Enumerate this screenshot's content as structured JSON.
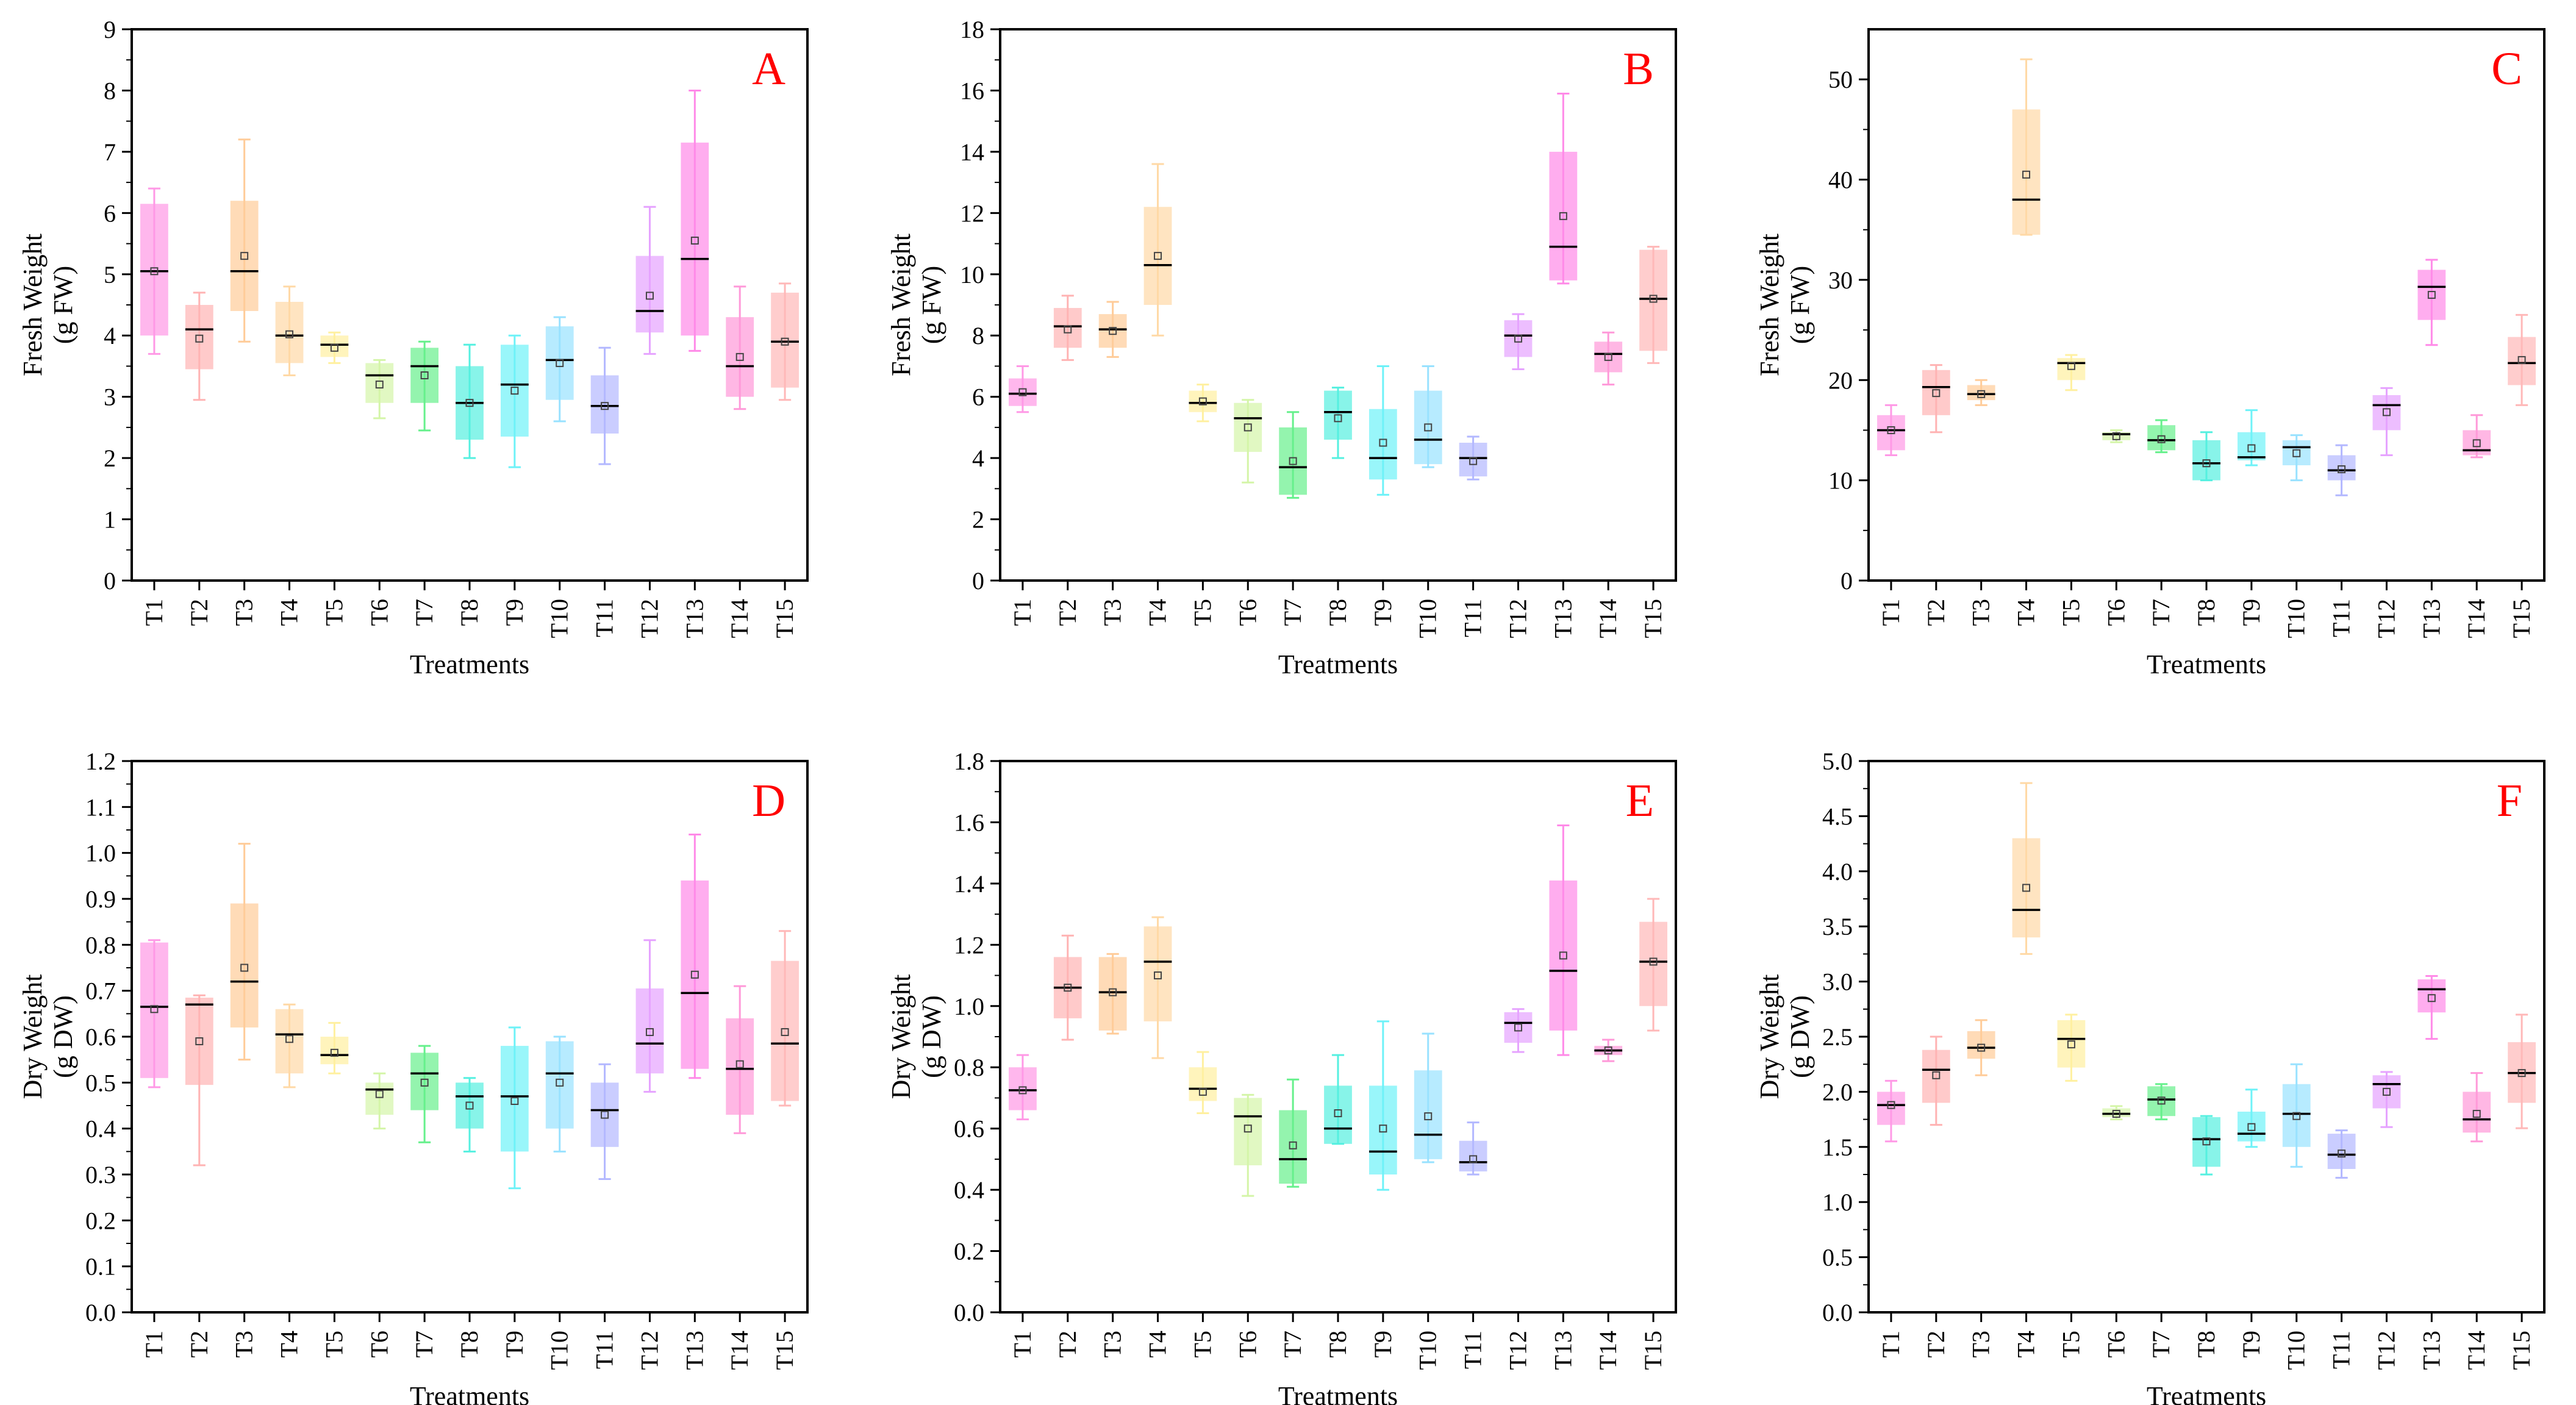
{
  "figure": {
    "treatments": [
      "T1",
      "T2",
      "T3",
      "T4",
      "T5",
      "T6",
      "T7",
      "T8",
      "T9",
      "T10",
      "T11",
      "T12",
      "T13",
      "T14",
      "T15"
    ],
    "colors": [
      "#ff99e6",
      "#ffb3b3",
      "#ffcc99",
      "#ffd9a6",
      "#fff0a0",
      "#d4f5a8",
      "#66f08c",
      "#55f0e0",
      "#6ef2f8",
      "#99e2ff",
      "#b3b8ff",
      "#e6a3ff",
      "#ff8ae8",
      "#ff99d9",
      "#ffb8b8"
    ]
  },
  "chart_data": [
    {
      "type": "box",
      "panel_label": "A",
      "xlabel": "Treatments",
      "ylabel": [
        "Fresh Weight",
        "(g FW)"
      ],
      "ylim": [
        0,
        9
      ],
      "yticks": [
        "0",
        "1",
        "2",
        "3",
        "4",
        "5",
        "6",
        "7",
        "8",
        "9"
      ],
      "categories": [
        "T1",
        "T2",
        "T3",
        "T4",
        "T5",
        "T6",
        "T7",
        "T8",
        "T9",
        "T10",
        "T11",
        "T12",
        "T13",
        "T14",
        "T15"
      ],
      "boxes": [
        {
          "min": 3.7,
          "q1": 4.0,
          "median": 5.05,
          "q3": 6.15,
          "max": 6.4,
          "mean": 5.05
        },
        {
          "min": 2.95,
          "q1": 3.45,
          "median": 4.1,
          "q3": 4.5,
          "max": 4.7,
          "mean": 3.95
        },
        {
          "min": 3.9,
          "q1": 4.4,
          "median": 5.05,
          "q3": 6.2,
          "max": 7.2,
          "mean": 5.3
        },
        {
          "min": 3.35,
          "q1": 3.55,
          "median": 4.0,
          "q3": 4.55,
          "max": 4.8,
          "mean": 4.02
        },
        {
          "min": 3.55,
          "q1": 3.65,
          "median": 3.85,
          "q3": 4.0,
          "max": 4.05,
          "mean": 3.8
        },
        {
          "min": 2.65,
          "q1": 2.9,
          "median": 3.35,
          "q3": 3.55,
          "max": 3.6,
          "mean": 3.2
        },
        {
          "min": 2.45,
          "q1": 2.9,
          "median": 3.5,
          "q3": 3.8,
          "max": 3.9,
          "mean": 3.35
        },
        {
          "min": 2.0,
          "q1": 2.3,
          "median": 2.9,
          "q3": 3.5,
          "max": 3.85,
          "mean": 2.9
        },
        {
          "min": 1.85,
          "q1": 2.35,
          "median": 3.2,
          "q3": 3.85,
          "max": 4.0,
          "mean": 3.1
        },
        {
          "min": 2.6,
          "q1": 2.95,
          "median": 3.6,
          "q3": 4.15,
          "max": 4.3,
          "mean": 3.55
        },
        {
          "min": 1.9,
          "q1": 2.4,
          "median": 2.85,
          "q3": 3.35,
          "max": 3.8,
          "mean": 2.85
        },
        {
          "min": 3.7,
          "q1": 4.05,
          "median": 4.4,
          "q3": 5.3,
          "max": 6.1,
          "mean": 4.65
        },
        {
          "min": 3.75,
          "q1": 4.0,
          "median": 5.25,
          "q3": 7.15,
          "max": 8.0,
          "mean": 5.55
        },
        {
          "min": 2.8,
          "q1": 3.0,
          "median": 3.5,
          "q3": 4.3,
          "max": 4.8,
          "mean": 3.65
        },
        {
          "min": 2.95,
          "q1": 3.15,
          "median": 3.9,
          "q3": 4.7,
          "max": 4.85,
          "mean": 3.9
        }
      ]
    },
    {
      "type": "box",
      "panel_label": "B",
      "xlabel": "Treatments",
      "ylabel": [
        "Fresh Weight",
        "(g FW)"
      ],
      "ylim": [
        0,
        18
      ],
      "yticks": [
        "0",
        "2",
        "4",
        "6",
        "8",
        "10",
        "12",
        "14",
        "16",
        "18"
      ],
      "categories": [
        "T1",
        "T2",
        "T3",
        "T4",
        "T5",
        "T6",
        "T7",
        "T8",
        "T9",
        "T10",
        "T11",
        "T12",
        "T13",
        "T14",
        "T15"
      ],
      "boxes": [
        {
          "min": 5.5,
          "q1": 5.7,
          "median": 6.1,
          "q3": 6.6,
          "max": 7.0,
          "mean": 6.15
        },
        {
          "min": 7.2,
          "q1": 7.6,
          "median": 8.3,
          "q3": 8.9,
          "max": 9.3,
          "mean": 8.2
        },
        {
          "min": 7.3,
          "q1": 7.6,
          "median": 8.2,
          "q3": 8.7,
          "max": 9.1,
          "mean": 8.15
        },
        {
          "min": 8.0,
          "q1": 9.0,
          "median": 10.3,
          "q3": 12.2,
          "max": 13.6,
          "mean": 10.6
        },
        {
          "min": 5.2,
          "q1": 5.5,
          "median": 5.8,
          "q3": 6.2,
          "max": 6.4,
          "mean": 5.85
        },
        {
          "min": 3.2,
          "q1": 4.2,
          "median": 5.3,
          "q3": 5.8,
          "max": 5.9,
          "mean": 5.0
        },
        {
          "min": 2.7,
          "q1": 2.8,
          "median": 3.7,
          "q3": 5.0,
          "max": 5.5,
          "mean": 3.9
        },
        {
          "min": 4.0,
          "q1": 4.6,
          "median": 5.5,
          "q3": 6.2,
          "max": 6.3,
          "mean": 5.3
        },
        {
          "min": 2.8,
          "q1": 3.3,
          "median": 4.0,
          "q3": 5.6,
          "max": 7.0,
          "mean": 4.5
        },
        {
          "min": 3.7,
          "q1": 3.8,
          "median": 4.6,
          "q3": 6.2,
          "max": 7.0,
          "mean": 5.0
        },
        {
          "min": 3.3,
          "q1": 3.4,
          "median": 4.0,
          "q3": 4.5,
          "max": 4.7,
          "mean": 3.9
        },
        {
          "min": 6.9,
          "q1": 7.3,
          "median": 8.0,
          "q3": 8.5,
          "max": 8.7,
          "mean": 7.9
        },
        {
          "min": 9.7,
          "q1": 9.8,
          "median": 10.9,
          "q3": 14.0,
          "max": 15.9,
          "mean": 11.9
        },
        {
          "min": 6.4,
          "q1": 6.8,
          "median": 7.4,
          "q3": 7.8,
          "max": 8.1,
          "mean": 7.3
        },
        {
          "min": 7.1,
          "q1": 7.5,
          "median": 9.2,
          "q3": 10.8,
          "max": 10.9,
          "mean": 9.2
        }
      ]
    },
    {
      "type": "box",
      "panel_label": "C",
      "xlabel": "Treatments",
      "ylabel": [
        "Fresh Weight",
        "(g FW)"
      ],
      "ylim": [
        0,
        55
      ],
      "yticks": [
        "0",
        "10",
        "20",
        "30",
        "40",
        "50"
      ],
      "ytick_values": [
        0,
        10,
        20,
        30,
        40,
        50
      ],
      "categories": [
        "T1",
        "T2",
        "T3",
        "T4",
        "T5",
        "T6",
        "T7",
        "T8",
        "T9",
        "T10",
        "T11",
        "T12",
        "T13",
        "T14",
        "T15"
      ],
      "boxes": [
        {
          "min": 12.5,
          "q1": 13.0,
          "median": 15.0,
          "q3": 16.5,
          "max": 17.5,
          "mean": 15.0
        },
        {
          "min": 14.8,
          "q1": 16.5,
          "median": 19.3,
          "q3": 21.0,
          "max": 21.5,
          "mean": 18.7
        },
        {
          "min": 17.5,
          "q1": 18.0,
          "median": 18.6,
          "q3": 19.5,
          "max": 20.0,
          "mean": 18.6
        },
        {
          "min": 34.5,
          "q1": 34.5,
          "median": 38.0,
          "q3": 47.0,
          "max": 52.0,
          "mean": 40.5
        },
        {
          "min": 19.0,
          "q1": 20.0,
          "median": 21.7,
          "q3": 22.2,
          "max": 22.5,
          "mean": 21.4
        },
        {
          "min": 13.8,
          "q1": 14.0,
          "median": 14.6,
          "q3": 14.8,
          "max": 15.0,
          "mean": 14.4
        },
        {
          "min": 12.8,
          "q1": 13.0,
          "median": 14.0,
          "q3": 15.5,
          "max": 16.0,
          "mean": 14.1
        },
        {
          "min": 10.0,
          "q1": 10.0,
          "median": 11.7,
          "q3": 14.0,
          "max": 14.8,
          "mean": 11.7
        },
        {
          "min": 11.5,
          "q1": 12.0,
          "median": 12.3,
          "q3": 14.8,
          "max": 17.0,
          "mean": 13.2
        },
        {
          "min": 10.0,
          "q1": 11.5,
          "median": 13.3,
          "q3": 14.0,
          "max": 14.5,
          "mean": 12.7
        },
        {
          "min": 8.5,
          "q1": 10.0,
          "median": 11.0,
          "q3": 12.5,
          "max": 13.5,
          "mean": 11.1
        },
        {
          "min": 12.5,
          "q1": 15.0,
          "median": 17.5,
          "q3": 18.5,
          "max": 19.2,
          "mean": 16.8
        },
        {
          "min": 23.5,
          "q1": 26.0,
          "median": 29.3,
          "q3": 31.0,
          "max": 32.0,
          "mean": 28.5
        },
        {
          "min": 12.3,
          "q1": 12.5,
          "median": 13.0,
          "q3": 15.0,
          "max": 16.5,
          "mean": 13.7
        },
        {
          "min": 17.5,
          "q1": 19.5,
          "median": 21.7,
          "q3": 24.3,
          "max": 26.5,
          "mean": 22.0
        }
      ]
    },
    {
      "type": "box",
      "panel_label": "D",
      "xlabel": "Treatments",
      "ylabel": [
        "Dry Weight",
        "(g DW)"
      ],
      "ylim": [
        0,
        1.2
      ],
      "yticks": [
        "0.0",
        "0.1",
        "0.2",
        "0.3",
        "0.4",
        "0.5",
        "0.6",
        "0.7",
        "0.8",
        "0.9",
        "1.0",
        "1.1",
        "1.2"
      ],
      "categories": [
        "T1",
        "T2",
        "T3",
        "T4",
        "T5",
        "T6",
        "T7",
        "T8",
        "T9",
        "T10",
        "T11",
        "T12",
        "T13",
        "T14",
        "T15"
      ],
      "boxes": [
        {
          "min": 0.49,
          "q1": 0.51,
          "median": 0.665,
          "q3": 0.805,
          "max": 0.81,
          "mean": 0.66
        },
        {
          "min": 0.32,
          "q1": 0.495,
          "median": 0.67,
          "q3": 0.685,
          "max": 0.69,
          "mean": 0.59
        },
        {
          "min": 0.55,
          "q1": 0.62,
          "median": 0.72,
          "q3": 0.89,
          "max": 1.02,
          "mean": 0.75
        },
        {
          "min": 0.49,
          "q1": 0.52,
          "median": 0.605,
          "q3": 0.66,
          "max": 0.67,
          "mean": 0.595
        },
        {
          "min": 0.52,
          "q1": 0.54,
          "median": 0.56,
          "q3": 0.6,
          "max": 0.63,
          "mean": 0.565
        },
        {
          "min": 0.4,
          "q1": 0.43,
          "median": 0.485,
          "q3": 0.5,
          "max": 0.52,
          "mean": 0.475
        },
        {
          "min": 0.37,
          "q1": 0.44,
          "median": 0.52,
          "q3": 0.565,
          "max": 0.58,
          "mean": 0.5
        },
        {
          "min": 0.35,
          "q1": 0.4,
          "median": 0.47,
          "q3": 0.5,
          "max": 0.51,
          "mean": 0.45
        },
        {
          "min": 0.27,
          "q1": 0.35,
          "median": 0.47,
          "q3": 0.58,
          "max": 0.62,
          "mean": 0.46
        },
        {
          "min": 0.35,
          "q1": 0.4,
          "median": 0.52,
          "q3": 0.59,
          "max": 0.6,
          "mean": 0.5
        },
        {
          "min": 0.29,
          "q1": 0.36,
          "median": 0.44,
          "q3": 0.5,
          "max": 0.54,
          "mean": 0.43
        },
        {
          "min": 0.48,
          "q1": 0.52,
          "median": 0.585,
          "q3": 0.705,
          "max": 0.81,
          "mean": 0.61
        },
        {
          "min": 0.51,
          "q1": 0.53,
          "median": 0.695,
          "q3": 0.94,
          "max": 1.04,
          "mean": 0.735
        },
        {
          "min": 0.39,
          "q1": 0.43,
          "median": 0.53,
          "q3": 0.64,
          "max": 0.71,
          "mean": 0.54
        },
        {
          "min": 0.45,
          "q1": 0.46,
          "median": 0.585,
          "q3": 0.765,
          "max": 0.83,
          "mean": 0.61
        }
      ]
    },
    {
      "type": "box",
      "panel_label": "E",
      "xlabel": "Treatments",
      "ylabel": [
        "Dry Weight",
        "(g DW)"
      ],
      "ylim": [
        0,
        1.8
      ],
      "yticks": [
        "0.0",
        "0.2",
        "0.4",
        "0.6",
        "0.8",
        "1.0",
        "1.2",
        "1.4",
        "1.6",
        "1.8"
      ],
      "categories": [
        "T1",
        "T2",
        "T3",
        "T4",
        "T5",
        "T6",
        "T7",
        "T8",
        "T9",
        "T10",
        "T11",
        "T12",
        "T13",
        "T14",
        "T15"
      ],
      "boxes": [
        {
          "min": 0.63,
          "q1": 0.66,
          "median": 0.725,
          "q3": 0.8,
          "max": 0.84,
          "mean": 0.725
        },
        {
          "min": 0.89,
          "q1": 0.96,
          "median": 1.06,
          "q3": 1.16,
          "max": 1.23,
          "mean": 1.06
        },
        {
          "min": 0.91,
          "q1": 0.92,
          "median": 1.045,
          "q3": 1.16,
          "max": 1.17,
          "mean": 1.045
        },
        {
          "min": 0.83,
          "q1": 0.95,
          "median": 1.145,
          "q3": 1.26,
          "max": 1.29,
          "mean": 1.1
        },
        {
          "min": 0.65,
          "q1": 0.69,
          "median": 0.73,
          "q3": 0.8,
          "max": 0.85,
          "mean": 0.72
        },
        {
          "min": 0.38,
          "q1": 0.48,
          "median": 0.64,
          "q3": 0.7,
          "max": 0.71,
          "mean": 0.6
        },
        {
          "min": 0.41,
          "q1": 0.42,
          "median": 0.5,
          "q3": 0.66,
          "max": 0.76,
          "mean": 0.545
        },
        {
          "min": 0.55,
          "q1": 0.55,
          "median": 0.6,
          "q3": 0.74,
          "max": 0.84,
          "mean": 0.65
        },
        {
          "min": 0.4,
          "q1": 0.45,
          "median": 0.525,
          "q3": 0.74,
          "max": 0.95,
          "mean": 0.6
        },
        {
          "min": 0.49,
          "q1": 0.5,
          "median": 0.58,
          "q3": 0.79,
          "max": 0.91,
          "mean": 0.64
        },
        {
          "min": 0.45,
          "q1": 0.46,
          "median": 0.49,
          "q3": 0.56,
          "max": 0.62,
          "mean": 0.5
        },
        {
          "min": 0.85,
          "q1": 0.88,
          "median": 0.945,
          "q3": 0.98,
          "max": 0.99,
          "mean": 0.93
        },
        {
          "min": 0.84,
          "q1": 0.92,
          "median": 1.115,
          "q3": 1.41,
          "max": 1.59,
          "mean": 1.165
        },
        {
          "min": 0.82,
          "q1": 0.84,
          "median": 0.855,
          "q3": 0.87,
          "max": 0.89,
          "mean": 0.855
        },
        {
          "min": 0.92,
          "q1": 1.0,
          "median": 1.145,
          "q3": 1.275,
          "max": 1.35,
          "mean": 1.145
        }
      ]
    },
    {
      "type": "box",
      "panel_label": "F",
      "xlabel": "Treatments",
      "ylabel": [
        "Dry Weight",
        "(g DW)"
      ],
      "ylim": [
        0,
        5.0
      ],
      "yticks": [
        "0.0",
        "0.5",
        "1.0",
        "1.5",
        "2.0",
        "2.5",
        "3.0",
        "3.5",
        "4.0",
        "4.5",
        "5.0"
      ],
      "categories": [
        "T1",
        "T2",
        "T3",
        "T4",
        "T5",
        "T6",
        "T7",
        "T8",
        "T9",
        "T10",
        "T11",
        "T12",
        "T13",
        "T14",
        "T15"
      ],
      "boxes": [
        {
          "min": 1.55,
          "q1": 1.7,
          "median": 1.88,
          "q3": 2.0,
          "max": 2.1,
          "mean": 1.88
        },
        {
          "min": 1.7,
          "q1": 1.9,
          "median": 2.2,
          "q3": 2.38,
          "max": 2.5,
          "mean": 2.15
        },
        {
          "min": 2.15,
          "q1": 2.3,
          "median": 2.4,
          "q3": 2.55,
          "max": 2.65,
          "mean": 2.4
        },
        {
          "min": 3.25,
          "q1": 3.4,
          "median": 3.65,
          "q3": 4.3,
          "max": 4.8,
          "mean": 3.85
        },
        {
          "min": 2.1,
          "q1": 2.22,
          "median": 2.48,
          "q3": 2.65,
          "max": 2.7,
          "mean": 2.43
        },
        {
          "min": 1.75,
          "q1": 1.77,
          "median": 1.8,
          "q3": 1.85,
          "max": 1.87,
          "mean": 1.8
        },
        {
          "min": 1.75,
          "q1": 1.78,
          "median": 1.93,
          "q3": 2.05,
          "max": 2.07,
          "mean": 1.92
        },
        {
          "min": 1.25,
          "q1": 1.32,
          "median": 1.57,
          "q3": 1.77,
          "max": 1.78,
          "mean": 1.55
        },
        {
          "min": 1.5,
          "q1": 1.55,
          "median": 1.62,
          "q3": 1.82,
          "max": 2.02,
          "mean": 1.68
        },
        {
          "min": 1.32,
          "q1": 1.5,
          "median": 1.8,
          "q3": 2.07,
          "max": 2.25,
          "mean": 1.78
        },
        {
          "min": 1.22,
          "q1": 1.3,
          "median": 1.43,
          "q3": 1.62,
          "max": 1.65,
          "mean": 1.44
        },
        {
          "min": 1.68,
          "q1": 1.85,
          "median": 2.07,
          "q3": 2.15,
          "max": 2.18,
          "mean": 2.0
        },
        {
          "min": 2.48,
          "q1": 2.72,
          "median": 2.93,
          "q3": 3.02,
          "max": 3.05,
          "mean": 2.85
        },
        {
          "min": 1.55,
          "q1": 1.63,
          "median": 1.75,
          "q3": 2.0,
          "max": 2.17,
          "mean": 1.8
        },
        {
          "min": 1.67,
          "q1": 1.9,
          "median": 2.17,
          "q3": 2.45,
          "max": 2.7,
          "mean": 2.17
        }
      ]
    }
  ]
}
